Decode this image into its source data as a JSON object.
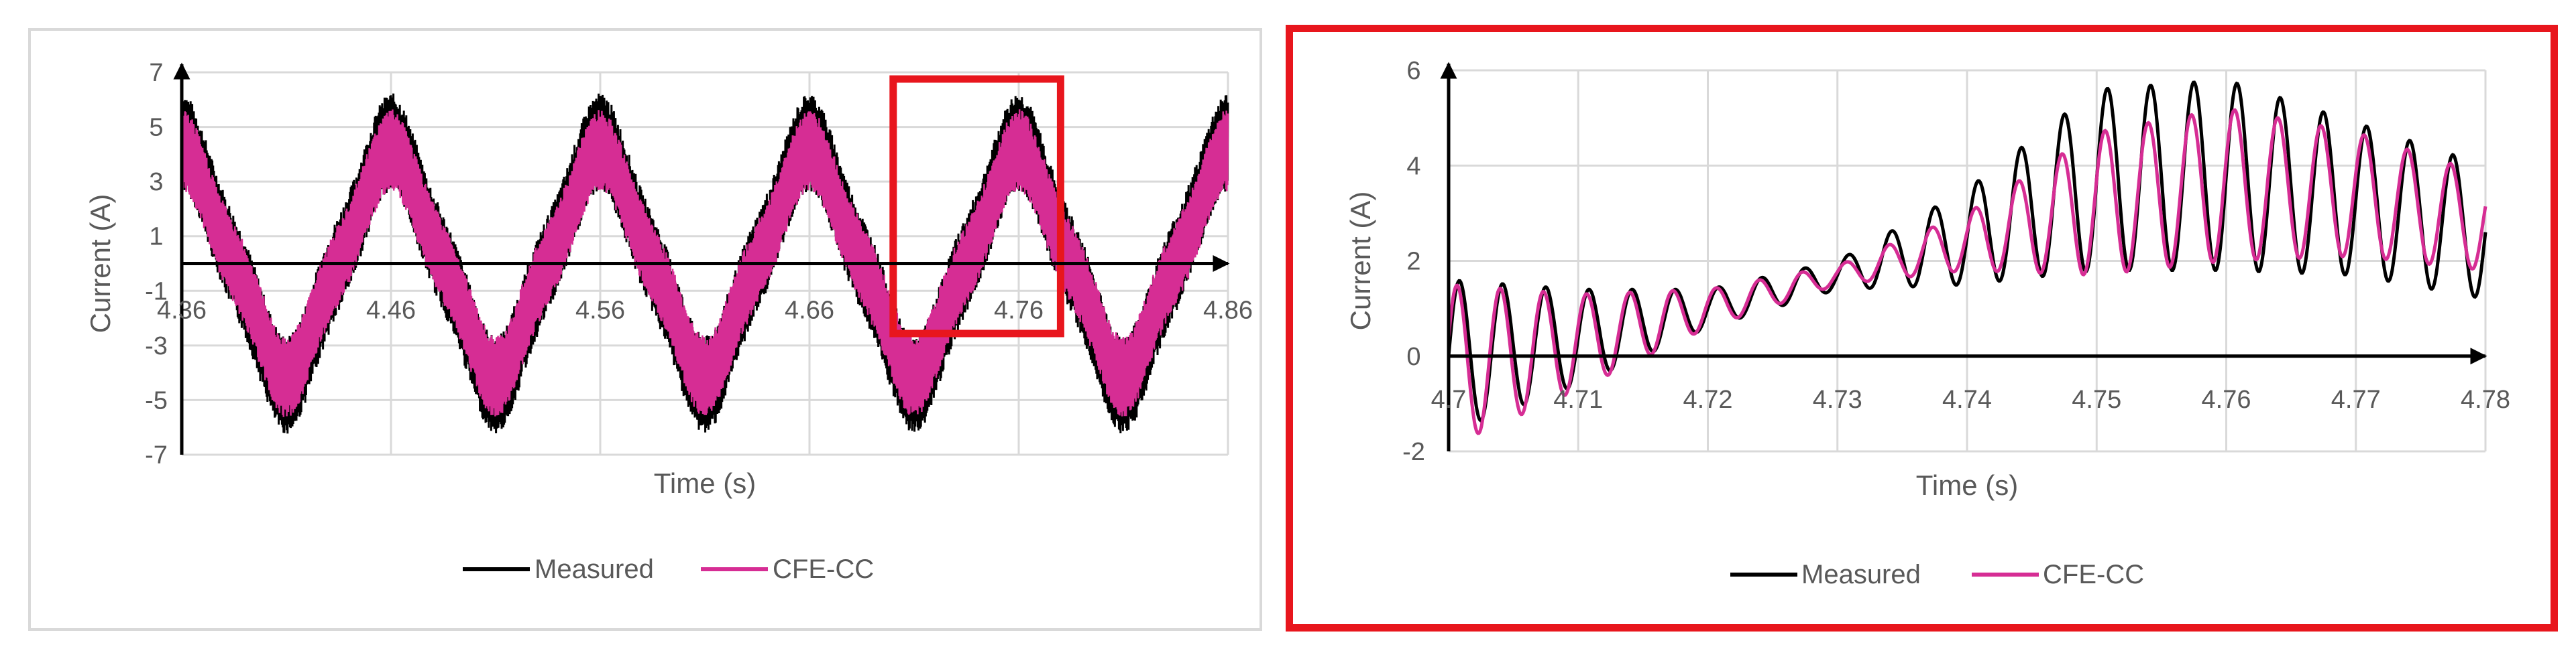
{
  "chart_data": [
    {
      "type": "line",
      "xlabel": "Time (s)",
      "ylabel": "Current (A)",
      "xlim": [
        4.36,
        4.86
      ],
      "ylim": [
        -7,
        7
      ],
      "x_ticks": [
        "4.36",
        "4.46",
        "4.56",
        "4.66",
        "4.76",
        "4.86"
      ],
      "y_ticks": [
        "7",
        "5",
        "3",
        "1",
        "-1",
        "-3",
        "-5",
        "-7"
      ],
      "grid": true,
      "legend": "bottom",
      "zoom_box_x": [
        4.7,
        4.78
      ],
      "series": [
        {
          "name": "Measured",
          "color": "#000000",
          "fundamental_hz": 10,
          "offset": 0.0,
          "amplitude": 4.0,
          "ripple_amplitude": 1.8
        },
        {
          "name": "CFE-CC",
          "color": "#d62d94",
          "fundamental_hz": 10,
          "offset": 0.0,
          "amplitude": 3.7,
          "ripple_amplitude": 1.5
        }
      ],
      "highlight_color": "#e8161d"
    },
    {
      "type": "line",
      "xlabel": "Time (s)",
      "ylabel": "Current (A)",
      "xlim": [
        4.7,
        4.78
      ],
      "ylim": [
        -2,
        6
      ],
      "x_ticks": [
        "4.7",
        "4.71",
        "4.72",
        "4.73",
        "4.74",
        "4.75",
        "4.76",
        "4.77",
        "4.78"
      ],
      "y_ticks": [
        "6",
        "4",
        "2",
        "0",
        "-2"
      ],
      "grid": true,
      "legend": "bottom",
      "series": [
        {
          "name": "Measured",
          "color": "#000000",
          "x": [
            4.7,
            4.71,
            4.72,
            4.73,
            4.74,
            4.75,
            4.76,
            4.77,
            4.78
          ],
          "envelope_center": [
            0.0,
            0.4,
            1.0,
            1.7,
            2.5,
            3.7,
            3.8,
            3.3,
            2.6
          ],
          "envelope_half_width": [
            1.6,
            1.0,
            0.4,
            0.3,
            1.0,
            1.9,
            2.0,
            1.6,
            1.4
          ]
        },
        {
          "name": "CFE-CC",
          "color": "#d62d94",
          "x": [
            4.7,
            4.71,
            4.72,
            4.73,
            4.74,
            4.75,
            4.76,
            4.77,
            4.78
          ],
          "envelope_center": [
            -0.2,
            0.3,
            1.0,
            1.7,
            2.4,
            3.2,
            3.6,
            3.4,
            2.8
          ],
          "envelope_half_width": [
            1.7,
            1.0,
            0.4,
            0.2,
            0.6,
            1.5,
            1.6,
            1.3,
            1.0
          ]
        }
      ]
    }
  ]
}
